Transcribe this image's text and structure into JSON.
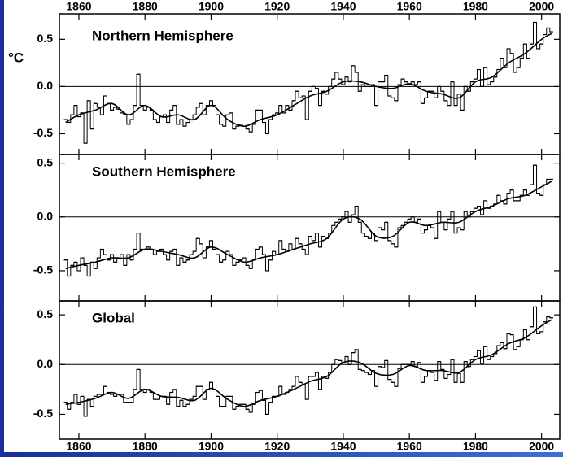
{
  "chart_data": [
    {
      "type": "line",
      "title": "Northern Hemisphere",
      "ylabel": "°C",
      "color": "#000000",
      "x": [
        1856,
        1857,
        1858,
        1859,
        1860,
        1861,
        1862,
        1863,
        1864,
        1865,
        1866,
        1867,
        1868,
        1869,
        1870,
        1871,
        1872,
        1873,
        1874,
        1875,
        1876,
        1877,
        1878,
        1879,
        1880,
        1881,
        1882,
        1883,
        1884,
        1885,
        1886,
        1887,
        1888,
        1889,
        1890,
        1891,
        1892,
        1893,
        1894,
        1895,
        1896,
        1897,
        1898,
        1899,
        1900,
        1901,
        1902,
        1903,
        1904,
        1905,
        1906,
        1907,
        1908,
        1909,
        1910,
        1911,
        1912,
        1913,
        1914,
        1915,
        1916,
        1917,
        1918,
        1919,
        1920,
        1921,
        1922,
        1923,
        1924,
        1925,
        1926,
        1927,
        1928,
        1929,
        1930,
        1931,
        1932,
        1933,
        1934,
        1935,
        1936,
        1937,
        1938,
        1939,
        1940,
        1941,
        1942,
        1943,
        1944,
        1945,
        1946,
        1947,
        1948,
        1949,
        1950,
        1951,
        1952,
        1953,
        1954,
        1955,
        1956,
        1957,
        1958,
        1959,
        1960,
        1961,
        1962,
        1963,
        1964,
        1965,
        1966,
        1967,
        1968,
        1969,
        1970,
        1971,
        1972,
        1973,
        1974,
        1975,
        1976,
        1977,
        1978,
        1979,
        1980,
        1981,
        1982,
        1983,
        1984,
        1985,
        1986,
        1987,
        1988,
        1989,
        1990,
        1991,
        1992,
        1993,
        1994,
        1995,
        1996,
        1997,
        1998,
        1999,
        2000,
        2001,
        2002,
        2003
      ],
      "values": [
        -0.35,
        -0.38,
        -0.3,
        -0.2,
        -0.32,
        -0.28,
        -0.6,
        -0.15,
        -0.45,
        -0.18,
        -0.22,
        -0.3,
        -0.1,
        -0.18,
        -0.25,
        -0.22,
        -0.24,
        -0.28,
        -0.3,
        -0.4,
        -0.35,
        -0.2,
        0.13,
        -0.2,
        -0.25,
        -0.22,
        -0.25,
        -0.35,
        -0.38,
        -0.32,
        -0.3,
        -0.38,
        -0.25,
        -0.2,
        -0.4,
        -0.35,
        -0.42,
        -0.38,
        -0.35,
        -0.3,
        -0.22,
        -0.18,
        -0.3,
        -0.2,
        -0.15,
        -0.2,
        -0.3,
        -0.4,
        -0.42,
        -0.3,
        -0.28,
        -0.45,
        -0.42,
        -0.4,
        -0.42,
        -0.45,
        -0.48,
        -0.4,
        -0.25,
        -0.25,
        -0.38,
        -0.5,
        -0.35,
        -0.3,
        -0.28,
        -0.2,
        -0.28,
        -0.2,
        -0.25,
        -0.15,
        -0.05,
        -0.12,
        -0.1,
        -0.35,
        -0.05,
        0.0,
        -0.02,
        -0.2,
        -0.05,
        -0.08,
        0.0,
        0.08,
        0.15,
        0.08,
        0.02,
        0.1,
        0.05,
        0.22,
        0.15,
        -0.05,
        0.02,
        0.0,
        0.0,
        0.02,
        -0.2,
        0.05,
        0.05,
        0.12,
        -0.1,
        -0.12,
        -0.15,
        0.02,
        0.08,
        0.05,
        0.02,
        0.05,
        0.02,
        0.05,
        -0.18,
        -0.12,
        -0.05,
        -0.05,
        -0.12,
        0.0,
        -0.05,
        -0.15,
        -0.2,
        0.05,
        -0.2,
        -0.08,
        -0.25,
        0.0,
        -0.05,
        0.05,
        0.08,
        0.18,
        0.0,
        0.2,
        0.02,
        0.05,
        0.1,
        0.18,
        0.3,
        0.2,
        0.4,
        0.35,
        0.15,
        0.2,
        0.3,
        0.45,
        0.3,
        0.45,
        0.68,
        0.4,
        0.45,
        0.55,
        0.62,
        0.58
      ],
      "smooth_x": [
        1856,
        1860,
        1865,
        1870,
        1875,
        1880,
        1885,
        1890,
        1895,
        1900,
        1905,
        1910,
        1915,
        1920,
        1925,
        1930,
        1935,
        1940,
        1945,
        1950,
        1955,
        1960,
        1965,
        1970,
        1975,
        1980,
        1985,
        1990,
        1995,
        2000,
        2003
      ],
      "smooth": [
        -0.38,
        -0.3,
        -0.25,
        -0.18,
        -0.3,
        -0.2,
        -0.32,
        -0.3,
        -0.35,
        -0.2,
        -0.35,
        -0.42,
        -0.35,
        -0.3,
        -0.2,
        -0.1,
        -0.05,
        0.05,
        0.05,
        0.0,
        -0.02,
        0.03,
        -0.05,
        -0.08,
        -0.12,
        0.05,
        0.1,
        0.25,
        0.35,
        0.5,
        0.56
      ],
      "xlim": [
        1854.1,
        2005.5
      ],
      "xticks": [
        1860,
        1880,
        1900,
        1920,
        1940,
        1960,
        1980,
        2000
      ],
      "ylim": [
        -0.72,
        0.77
      ],
      "yticks": [
        -0.5,
        {
          "value": 0,
          "label": "0.0"
        },
        0.5
      ]
    },
    {
      "type": "line",
      "title": "Southern Hemisphere",
      "color": "#000000",
      "x": [
        1856,
        1857,
        1858,
        1859,
        1860,
        1861,
        1862,
        1863,
        1864,
        1865,
        1866,
        1867,
        1868,
        1869,
        1870,
        1871,
        1872,
        1873,
        1874,
        1875,
        1876,
        1877,
        1878,
        1879,
        1880,
        1881,
        1882,
        1883,
        1884,
        1885,
        1886,
        1887,
        1888,
        1889,
        1890,
        1891,
        1892,
        1893,
        1894,
        1895,
        1896,
        1897,
        1898,
        1899,
        1900,
        1901,
        1902,
        1903,
        1904,
        1905,
        1906,
        1907,
        1908,
        1909,
        1910,
        1911,
        1912,
        1913,
        1914,
        1915,
        1916,
        1917,
        1918,
        1919,
        1920,
        1921,
        1922,
        1923,
        1924,
        1925,
        1926,
        1927,
        1928,
        1929,
        1930,
        1931,
        1932,
        1933,
        1934,
        1935,
        1936,
        1937,
        1938,
        1939,
        1940,
        1941,
        1942,
        1943,
        1944,
        1945,
        1946,
        1947,
        1948,
        1949,
        1950,
        1951,
        1952,
        1953,
        1954,
        1955,
        1956,
        1957,
        1958,
        1959,
        1960,
        1961,
        1962,
        1963,
        1964,
        1965,
        1966,
        1967,
        1968,
        1969,
        1970,
        1971,
        1972,
        1973,
        1974,
        1975,
        1976,
        1977,
        1978,
        1979,
        1980,
        1981,
        1982,
        1983,
        1984,
        1985,
        1986,
        1987,
        1988,
        1989,
        1990,
        1991,
        1992,
        1993,
        1994,
        1995,
        1996,
        1997,
        1998,
        1999,
        2000,
        2001,
        2002,
        2003
      ],
      "values": [
        -0.4,
        -0.55,
        -0.45,
        -0.42,
        -0.5,
        -0.38,
        -0.45,
        -0.55,
        -0.42,
        -0.48,
        -0.38,
        -0.3,
        -0.35,
        -0.4,
        -0.35,
        -0.42,
        -0.38,
        -0.35,
        -0.45,
        -0.35,
        -0.4,
        -0.3,
        -0.15,
        -0.3,
        -0.3,
        -0.28,
        -0.3,
        -0.35,
        -0.32,
        -0.3,
        -0.35,
        -0.4,
        -0.32,
        -0.3,
        -0.45,
        -0.38,
        -0.42,
        -0.4,
        -0.35,
        -0.32,
        -0.2,
        -0.25,
        -0.38,
        -0.28,
        -0.22,
        -0.3,
        -0.35,
        -0.42,
        -0.4,
        -0.32,
        -0.35,
        -0.45,
        -0.42,
        -0.4,
        -0.38,
        -0.45,
        -0.48,
        -0.4,
        -0.3,
        -0.28,
        -0.35,
        -0.5,
        -0.4,
        -0.32,
        -0.35,
        -0.22,
        -0.3,
        -0.32,
        -0.25,
        -0.3,
        -0.2,
        -0.25,
        -0.3,
        -0.35,
        -0.18,
        -0.22,
        -0.15,
        -0.28,
        -0.18,
        -0.2,
        -0.15,
        -0.08,
        -0.05,
        -0.02,
        0.0,
        0.05,
        -0.05,
        0.02,
        0.1,
        -0.05,
        -0.15,
        -0.18,
        -0.2,
        -0.15,
        -0.22,
        -0.1,
        -0.12,
        -0.05,
        -0.22,
        -0.25,
        -0.28,
        -0.1,
        -0.08,
        -0.05,
        -0.02,
        0.0,
        -0.05,
        -0.02,
        -0.15,
        -0.12,
        -0.08,
        -0.1,
        -0.2,
        0.05,
        -0.05,
        -0.12,
        -0.02,
        0.05,
        -0.15,
        -0.1,
        -0.12,
        0.05,
        0.0,
        0.05,
        0.08,
        0.1,
        0.02,
        0.15,
        0.08,
        0.1,
        0.12,
        0.2,
        0.15,
        0.12,
        0.22,
        0.25,
        0.15,
        0.15,
        0.2,
        0.25,
        0.2,
        0.3,
        0.48,
        0.22,
        0.2,
        0.3,
        0.35,
        0.35
      ],
      "smooth_x": [
        1856,
        1860,
        1865,
        1870,
        1875,
        1880,
        1885,
        1890,
        1895,
        1900,
        1905,
        1910,
        1915,
        1920,
        1925,
        1930,
        1935,
        1940,
        1945,
        1950,
        1955,
        1960,
        1965,
        1970,
        1975,
        1980,
        1985,
        1990,
        1995,
        2000,
        2003
      ],
      "smooth": [
        -0.48,
        -0.45,
        -0.42,
        -0.38,
        -0.38,
        -0.3,
        -0.32,
        -0.35,
        -0.38,
        -0.28,
        -0.35,
        -0.42,
        -0.38,
        -0.35,
        -0.3,
        -0.25,
        -0.2,
        -0.02,
        -0.02,
        -0.18,
        -0.18,
        -0.05,
        -0.08,
        -0.05,
        -0.05,
        0.05,
        0.1,
        0.17,
        0.2,
        0.28,
        0.33
      ],
      "xlim": [
        1854.1,
        2005.5
      ],
      "xticks": [
        1860,
        1880,
        1900,
        1920,
        1940,
        1960,
        1980,
        2000
      ],
      "ylim": [
        -0.78,
        0.58
      ],
      "yticks": [
        -0.5,
        {
          "value": 0,
          "label": "0.0"
        },
        0.5
      ]
    },
    {
      "type": "line",
      "title": "Global",
      "color": "#000000",
      "x": [
        1856,
        1857,
        1858,
        1859,
        1860,
        1861,
        1862,
        1863,
        1864,
        1865,
        1866,
        1867,
        1868,
        1869,
        1870,
        1871,
        1872,
        1873,
        1874,
        1875,
        1876,
        1877,
        1878,
        1879,
        1880,
        1881,
        1882,
        1883,
        1884,
        1885,
        1886,
        1887,
        1888,
        1889,
        1890,
        1891,
        1892,
        1893,
        1894,
        1895,
        1896,
        1897,
        1898,
        1899,
        1900,
        1901,
        1902,
        1903,
        1904,
        1905,
        1906,
        1907,
        1908,
        1909,
        1910,
        1911,
        1912,
        1913,
        1914,
        1915,
        1916,
        1917,
        1918,
        1919,
        1920,
        1921,
        1922,
        1923,
        1924,
        1925,
        1926,
        1927,
        1928,
        1929,
        1930,
        1931,
        1932,
        1933,
        1934,
        1935,
        1936,
        1937,
        1938,
        1939,
        1940,
        1941,
        1942,
        1943,
        1944,
        1945,
        1946,
        1947,
        1948,
        1949,
        1950,
        1951,
        1952,
        1953,
        1954,
        1955,
        1956,
        1957,
        1958,
        1959,
        1960,
        1961,
        1962,
        1963,
        1964,
        1965,
        1966,
        1967,
        1968,
        1969,
        1970,
        1971,
        1972,
        1973,
        1974,
        1975,
        1976,
        1977,
        1978,
        1979,
        1980,
        1981,
        1982,
        1983,
        1984,
        1985,
        1986,
        1987,
        1988,
        1989,
        1990,
        1991,
        1992,
        1993,
        1994,
        1995,
        1996,
        1997,
        1998,
        1999,
        2000,
        2001,
        2002,
        2003
      ],
      "values": [
        -0.38,
        -0.45,
        -0.38,
        -0.3,
        -0.4,
        -0.32,
        -0.52,
        -0.35,
        -0.42,
        -0.32,
        -0.3,
        -0.3,
        -0.22,
        -0.28,
        -0.3,
        -0.32,
        -0.3,
        -0.3,
        -0.38,
        -0.38,
        -0.38,
        -0.25,
        -0.05,
        -0.25,
        -0.28,
        -0.25,
        -0.28,
        -0.35,
        -0.35,
        -0.32,
        -0.32,
        -0.4,
        -0.28,
        -0.25,
        -0.42,
        -0.36,
        -0.42,
        -0.4,
        -0.35,
        -0.32,
        -0.22,
        -0.22,
        -0.35,
        -0.25,
        -0.18,
        -0.25,
        -0.32,
        -0.42,
        -0.42,
        -0.32,
        -0.32,
        -0.45,
        -0.42,
        -0.4,
        -0.4,
        -0.45,
        -0.48,
        -0.4,
        -0.28,
        -0.26,
        -0.36,
        -0.5,
        -0.38,
        -0.32,
        -0.32,
        -0.22,
        -0.3,
        -0.28,
        -0.25,
        -0.22,
        -0.12,
        -0.18,
        -0.2,
        -0.35,
        -0.12,
        -0.12,
        -0.08,
        -0.25,
        -0.12,
        -0.14,
        -0.08,
        0.0,
        0.05,
        0.04,
        0.02,
        0.08,
        0.0,
        0.12,
        0.15,
        -0.05,
        -0.06,
        -0.08,
        -0.1,
        -0.06,
        -0.22,
        -0.02,
        -0.03,
        0.04,
        -0.15,
        -0.18,
        -0.22,
        -0.04,
        0.0,
        0.0,
        0.0,
        0.03,
        -0.02,
        0.02,
        -0.18,
        -0.12,
        -0.06,
        -0.08,
        -0.16,
        0.03,
        -0.05,
        -0.14,
        -0.1,
        0.05,
        -0.18,
        -0.09,
        -0.18,
        0.03,
        -0.02,
        0.05,
        0.08,
        0.14,
        0.01,
        0.18,
        0.05,
        0.08,
        0.11,
        0.19,
        0.22,
        0.16,
        0.31,
        0.3,
        0.15,
        0.18,
        0.25,
        0.35,
        0.25,
        0.38,
        0.58,
        0.31,
        0.33,
        0.43,
        0.48,
        0.47
      ],
      "smooth_x": [
        1856,
        1860,
        1865,
        1870,
        1875,
        1880,
        1885,
        1890,
        1895,
        1900,
        1905,
        1910,
        1915,
        1920,
        1925,
        1930,
        1935,
        1940,
        1945,
        1950,
        1955,
        1960,
        1965,
        1970,
        1975,
        1980,
        1985,
        1990,
        1995,
        2000,
        2003
      ],
      "smooth": [
        -0.4,
        -0.38,
        -0.34,
        -0.28,
        -0.34,
        -0.25,
        -0.32,
        -0.33,
        -0.36,
        -0.24,
        -0.35,
        -0.42,
        -0.36,
        -0.32,
        -0.25,
        -0.17,
        -0.12,
        0.02,
        0.02,
        -0.09,
        -0.1,
        -0.01,
        -0.06,
        -0.06,
        -0.08,
        0.05,
        0.1,
        0.21,
        0.27,
        0.39,
        0.45
      ],
      "xlim": [
        1854.1,
        2005.5
      ],
      "xticks": [
        1860,
        1880,
        1900,
        1920,
        1940,
        1960,
        1980,
        2000
      ],
      "ylim": [
        -0.75,
        0.64
      ],
      "yticks": [
        -0.5,
        {
          "value": 0,
          "label": "0.0"
        },
        0.5
      ]
    }
  ]
}
